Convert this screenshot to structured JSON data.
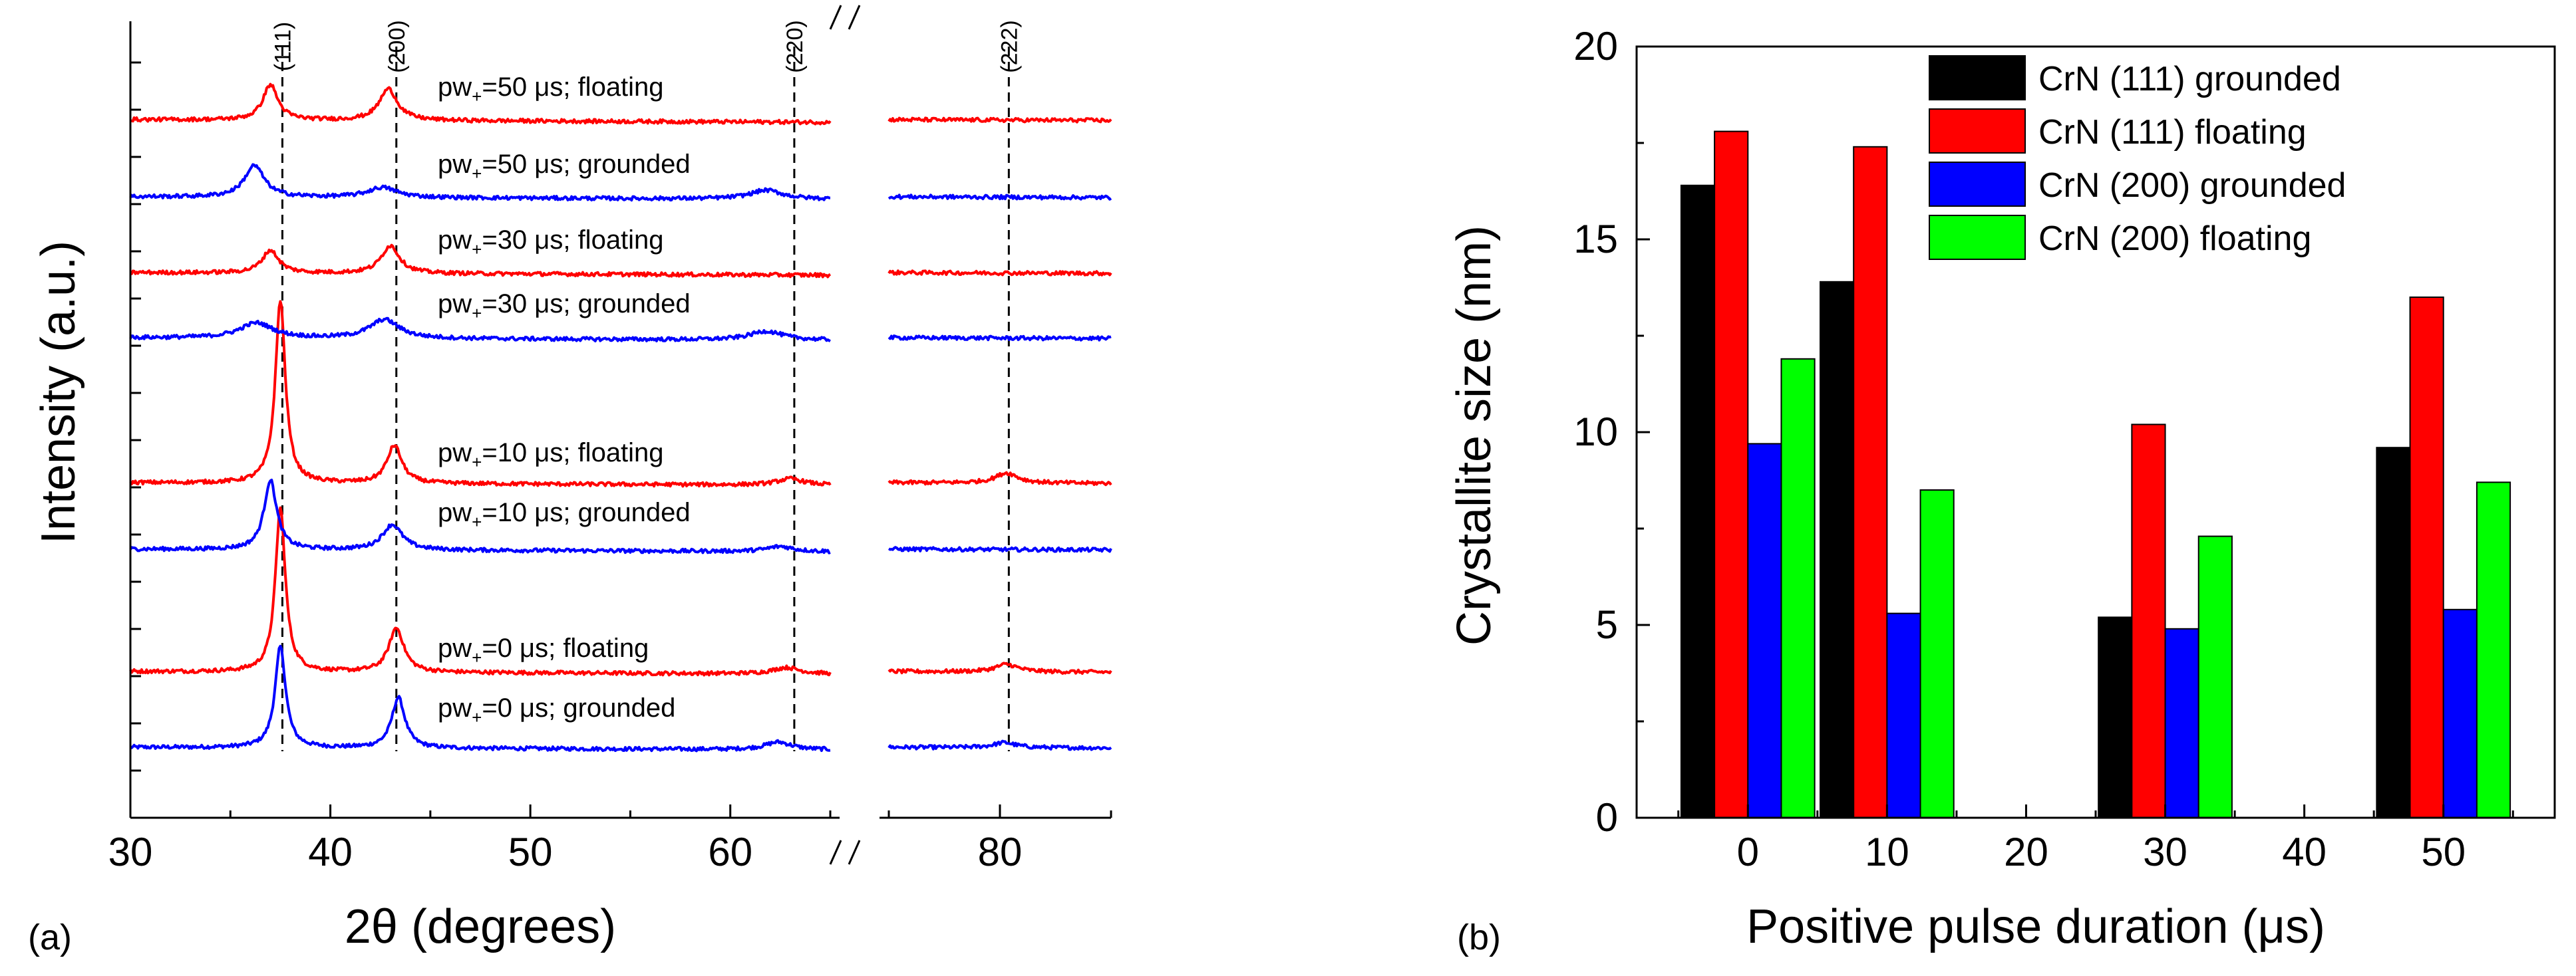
{
  "chart_data": [
    {
      "panel_label": "(a)",
      "type": "line",
      "title": "",
      "xlabel": "2θ (degrees)",
      "ylabel": "Intensity (a.u.)",
      "x_segments": [
        {
          "xlim": [
            30,
            65
          ],
          "ticks": [
            30,
            40,
            50,
            60
          ],
          "tick_labels": [
            "30",
            "40",
            "50",
            "60"
          ]
        },
        {
          "xlim": [
            75,
            85
          ],
          "ticks": [
            80
          ],
          "tick_labels": [
            "80"
          ]
        }
      ],
      "axis_break_mark": "//",
      "peak_markers": [
        {
          "label": "(111)",
          "x": 37.6
        },
        {
          "label": "(200)",
          "x": 43.3
        },
        {
          "label": "(220)",
          "x": 63.2
        },
        {
          "label": "(222)",
          "x": 80.4
        }
      ],
      "series": [
        {
          "label": "pw+=0 μs; grounded",
          "label_prefix": "pw",
          "label_sub": "+",
          "label_suffix": "=0 μs; grounded",
          "color": "#0000ff",
          "peaks": [
            {
              "x": 37.5,
              "height": 0.8,
              "width": 0.32
            },
            {
              "x": 43.4,
              "height": 0.4,
              "width": 0.4
            },
            {
              "x": 62.4,
              "height": 0.06,
              "width": 0.8
            },
            {
              "x": 80.2,
              "height": 0.04,
              "width": 0.6
            }
          ]
        },
        {
          "label": "pw+=0 μs; floating",
          "label_prefix": "pw",
          "label_sub": "+",
          "label_suffix": "=0 μs; floating",
          "color": "#ff0000",
          "peaks": [
            {
              "x": 37.5,
              "height": 1.3,
              "width": 0.3
            },
            {
              "x": 43.3,
              "height": 0.35,
              "width": 0.45
            },
            {
              "x": 62.8,
              "height": 0.05,
              "width": 0.8
            },
            {
              "x": 80.3,
              "height": 0.06,
              "width": 0.6
            }
          ]
        },
        {
          "label": "pw+=10 μs; grounded",
          "label_prefix": "pw",
          "label_sub": "+",
          "label_suffix": "=10 μs; grounded",
          "color": "#0000ff",
          "peaks": [
            {
              "x": 37.0,
              "height": 0.55,
              "width": 0.38
            },
            {
              "x": 43.1,
              "height": 0.2,
              "width": 0.6
            },
            {
              "x": 62.5,
              "height": 0.04,
              "width": 0.8
            }
          ]
        },
        {
          "label": "pw+=10 μs; floating",
          "label_prefix": "pw",
          "label_sub": "+",
          "label_suffix": "=10 μs; floating",
          "color": "#ff0000",
          "peaks": [
            {
              "x": 37.5,
              "height": 1.45,
              "width": 0.3
            },
            {
              "x": 43.2,
              "height": 0.3,
              "width": 0.45
            },
            {
              "x": 63.0,
              "height": 0.05,
              "width": 0.8
            },
            {
              "x": 80.3,
              "height": 0.08,
              "width": 0.6
            }
          ]
        },
        {
          "label": "pw+=30 μs; grounded",
          "label_prefix": "pw",
          "label_sub": "+",
          "label_suffix": "=30 μs; grounded",
          "color": "#0000ff",
          "peaks": [
            {
              "x": 36.3,
              "height": 0.12,
              "width": 1.0
            },
            {
              "x": 42.7,
              "height": 0.15,
              "width": 0.9
            },
            {
              "x": 61.8,
              "height": 0.07,
              "width": 1.0
            }
          ]
        },
        {
          "label": "pw+=30 μs; floating",
          "label_prefix": "pw",
          "label_sub": "+",
          "label_suffix": "=30 μs; floating",
          "color": "#ff0000",
          "peaks": [
            {
              "x": 37.0,
              "height": 0.18,
              "width": 0.5
            },
            {
              "x": 43.0,
              "height": 0.22,
              "width": 0.55
            }
          ]
        },
        {
          "label": "pw+=50 μs; grounded",
          "label_prefix": "pw",
          "label_sub": "+",
          "label_suffix": "=50 μs; grounded",
          "color": "#0000ff",
          "peaks": [
            {
              "x": 36.2,
              "height": 0.25,
              "width": 0.6
            },
            {
              "x": 42.6,
              "height": 0.08,
              "width": 0.9
            },
            {
              "x": 61.8,
              "height": 0.07,
              "width": 1.0
            }
          ]
        },
        {
          "label": "pw+=50 μs; floating",
          "label_prefix": "pw",
          "label_sub": "+",
          "label_suffix": "=50 μs; floating",
          "color": "#ff0000",
          "peaks": [
            {
              "x": 37.0,
              "height": 0.28,
              "width": 0.45
            },
            {
              "x": 42.9,
              "height": 0.25,
              "width": 0.55
            }
          ]
        }
      ]
    },
    {
      "panel_label": "(b)",
      "type": "bar",
      "title": "",
      "xlabel": "Positive pulse duration (μs)",
      "ylabel": "Crystallite size (nm)",
      "xlim": [
        -8,
        58
      ],
      "ylim": [
        0,
        20
      ],
      "x_ticks": [
        0,
        10,
        20,
        30,
        40,
        50
      ],
      "x_tick_labels": [
        "0",
        "10",
        "20",
        "30",
        "40",
        "50"
      ],
      "y_ticks": [
        0,
        5,
        10,
        15,
        20
      ],
      "y_tick_labels": [
        "0",
        "5",
        "10",
        "15",
        "20"
      ],
      "categories": [
        0,
        10,
        30,
        50
      ],
      "bar_width": 2.4,
      "legend_position": "top-right",
      "series": [
        {
          "name": "CrN (111) grounded",
          "color": "#000000",
          "values": [
            16.4,
            13.9,
            5.2,
            9.6
          ]
        },
        {
          "name": "CrN (111) floating",
          "color": "#ff0000",
          "values": [
            17.8,
            17.4,
            10.2,
            13.5
          ]
        },
        {
          "name": "CrN (200) grounded",
          "color": "#0000ff",
          "values": [
            9.7,
            5.3,
            4.9,
            5.4
          ]
        },
        {
          "name": "CrN (200) floating",
          "color": "#00ff00",
          "values": [
            11.9,
            8.5,
            7.3,
            8.7
          ]
        }
      ]
    }
  ]
}
